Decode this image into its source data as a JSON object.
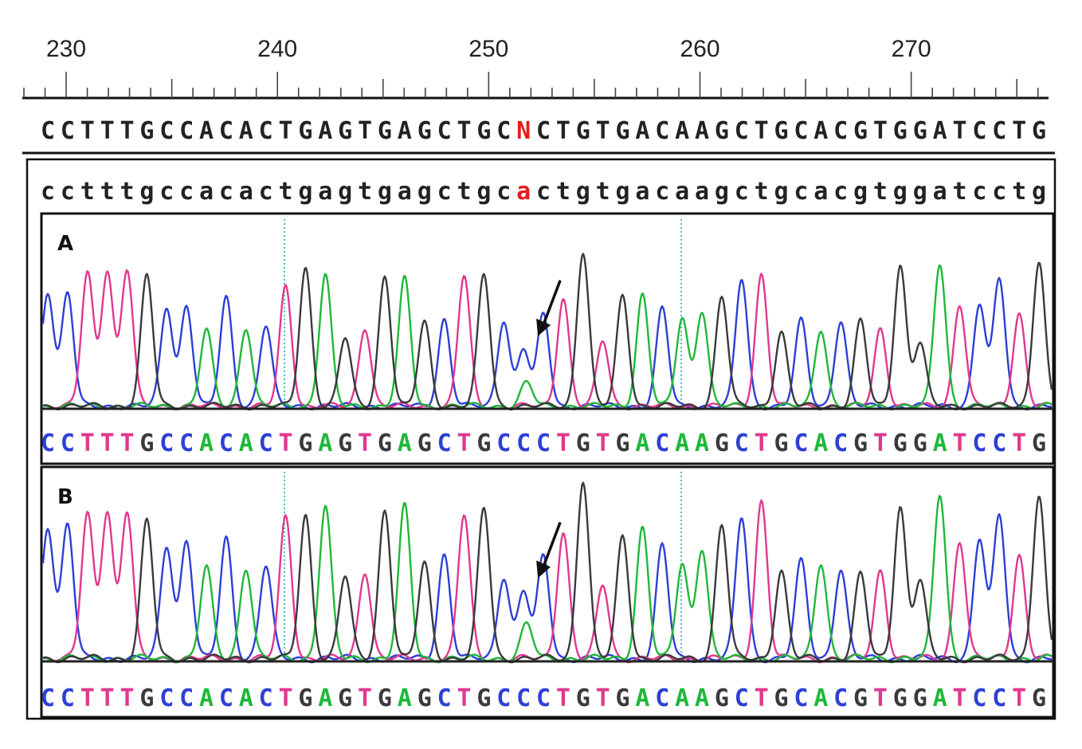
{
  "ruler": {
    "tick_labels": [
      "230",
      "240",
      "250",
      "260",
      "270"
    ],
    "start": 228.0,
    "end": 276.5
  },
  "reference_sequence": "CCTTTGCCACACTGAGTGAGCTGCNCTGTGACAAGCTGCACGTGGATCCTG",
  "consensus_sequence": "cctttgccacactgagtgagctgcactgtgacaagctgcacgtggatcctg",
  "variant_index": 24,
  "colors": {
    "A": "#1fb83a",
    "C": "#2d3fd6",
    "G": "#3a3a3a",
    "T": "#e0388f",
    "N": "#e81b1b",
    "variant": "#e81b1b",
    "guide": "#25a9b3",
    "frame": "#111111"
  },
  "chart_data": [
    {
      "type": "line",
      "panel": "A",
      "xlim": [
        228.0,
        276.5
      ],
      "base_calls": "CCTTTGCCACACTGAGTGAGCTGCCCTGTGACAAGCTGCACGTGGATCCTG",
      "peak_heights": [
        0.74,
        0.73,
        0.86,
        0.88,
        0.88,
        0.84,
        0.64,
        0.65,
        0.49,
        0.7,
        0.51,
        0.52,
        0.77,
        0.89,
        0.85,
        0.44,
        0.51,
        0.84,
        0.82,
        0.54,
        0.56,
        0.84,
        0.85,
        0.56,
        0.37,
        0.59,
        0.7,
        1.0,
        0.42,
        0.71,
        0.72,
        0.63,
        0.57,
        0.62,
        0.71,
        0.82,
        0.85,
        0.48,
        0.55,
        0.5,
        0.55,
        0.55,
        0.5,
        0.91,
        0.41,
        0.92,
        0.66,
        0.66,
        0.82,
        0.6,
        0.94
      ],
      "secondary_peak": {
        "index": 24,
        "base": "A",
        "height": 0.15
      },
      "arrow_at": 24
    },
    {
      "type": "line",
      "panel": "B",
      "xlim": [
        228.0,
        276.5
      ],
      "base_calls": "CCTTTGCCACACTGAGTGAGCTGCCCTGTGACAAGCTGCACGTGGATCCTG",
      "peak_heights": [
        0.74,
        0.75,
        0.81,
        0.83,
        0.82,
        0.77,
        0.63,
        0.66,
        0.51,
        0.67,
        0.51,
        0.52,
        0.79,
        0.8,
        0.85,
        0.46,
        0.49,
        0.83,
        0.85,
        0.53,
        0.58,
        0.8,
        0.84,
        0.46,
        0.38,
        0.57,
        0.71,
        1.0,
        0.41,
        0.68,
        0.73,
        0.63,
        0.53,
        0.62,
        0.75,
        0.79,
        0.88,
        0.49,
        0.54,
        0.54,
        0.5,
        0.47,
        0.49,
        0.85,
        0.44,
        0.92,
        0.66,
        0.67,
        0.8,
        0.58,
        0.92
      ],
      "secondary_peak": {
        "index": 24,
        "base": "A",
        "height": 0.19
      },
      "arrow_at": 24
    }
  ],
  "panels": [
    {
      "label": "A"
    },
    {
      "label": "B"
    }
  ]
}
